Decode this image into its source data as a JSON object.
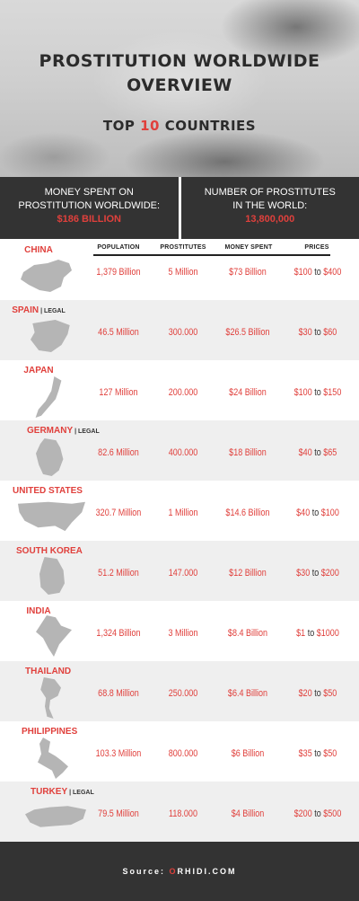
{
  "header": {
    "title_line1": "PROSTITUTION WORLDWIDE",
    "title_line2": "OVERVIEW",
    "subtitle_pre": "TOP",
    "subtitle_num": "10",
    "subtitle_post": "COUNTRIES"
  },
  "stats": {
    "left_line1": "MONEY SPENT ON",
    "left_line2": "PROSTITUTION WORLDWIDE:",
    "left_value": "$186 BILLION",
    "right_line1": "NUMBER OF PROSTITUTES",
    "right_line2": "IN THE WORLD:",
    "right_value": "13,800,000"
  },
  "columns": {
    "population": "POPULATION",
    "prostitutes": "PROSTITUTES",
    "money": "MONEY SPENT",
    "prices": "PRICES"
  },
  "legal_label": "| LEGAL",
  "to_word": "to",
  "rows": [
    {
      "country": "CHINA",
      "population": "1,379 Billion",
      "prostitutes": "5 Million",
      "money": "$73 Billion",
      "price_low": "$100",
      "price_high": "$400"
    },
    {
      "country": "SPAIN",
      "population": "46.5 Million",
      "prostitutes": "300.000",
      "money": "$26.5 Billion",
      "price_low": "$30",
      "price_high": "$60"
    },
    {
      "country": "JAPAN",
      "population": "127 Million",
      "prostitutes": "200.000",
      "money": "$24 Billion",
      "price_low": "$100",
      "price_high": "$150"
    },
    {
      "country": "GERMANY",
      "population": "82.6 Million",
      "prostitutes": "400.000",
      "money": "$18 Billion",
      "price_low": "$40",
      "price_high": "$65"
    },
    {
      "country": "UNITED STATES",
      "population": "320.7 Million",
      "prostitutes": "1 Million",
      "money": "$14.6 Billion",
      "price_low": "$40",
      "price_high": "$100"
    },
    {
      "country": "SOUTH KOREA",
      "population": "51.2 Million",
      "prostitutes": "147.000",
      "money": "$12 Billion",
      "price_low": "$30",
      "price_high": "$200"
    },
    {
      "country": "INDIA",
      "population": "1,324 Billion",
      "prostitutes": "3 Million",
      "money": "$8.4 Billion",
      "price_low": "$1",
      "price_high": "$1000"
    },
    {
      "country": "THAILAND",
      "population": "68.8 Million",
      "prostitutes": "250.000",
      "money": "$6.4 Billion",
      "price_low": "$20",
      "price_high": "$50"
    },
    {
      "country": "PHILIPPINES",
      "population": "103.3 Million",
      "prostitutes": "800.000",
      "money": "$6 Billion",
      "price_low": "$35",
      "price_high": "$50"
    },
    {
      "country": "TURKEY",
      "population": "79.5 Million",
      "prostitutes": "118.000",
      "money": "$4 Billion",
      "price_low": "$200",
      "price_high": "$500"
    }
  ],
  "footer": {
    "source_label": "Source:",
    "brand_first": "O",
    "brand_rest": "RHIDI.COM"
  },
  "colors": {
    "accent": "#e0403c",
    "dark_band": "#333333",
    "row_alt": "#efefef",
    "map_gray": "#b5b5b5"
  }
}
